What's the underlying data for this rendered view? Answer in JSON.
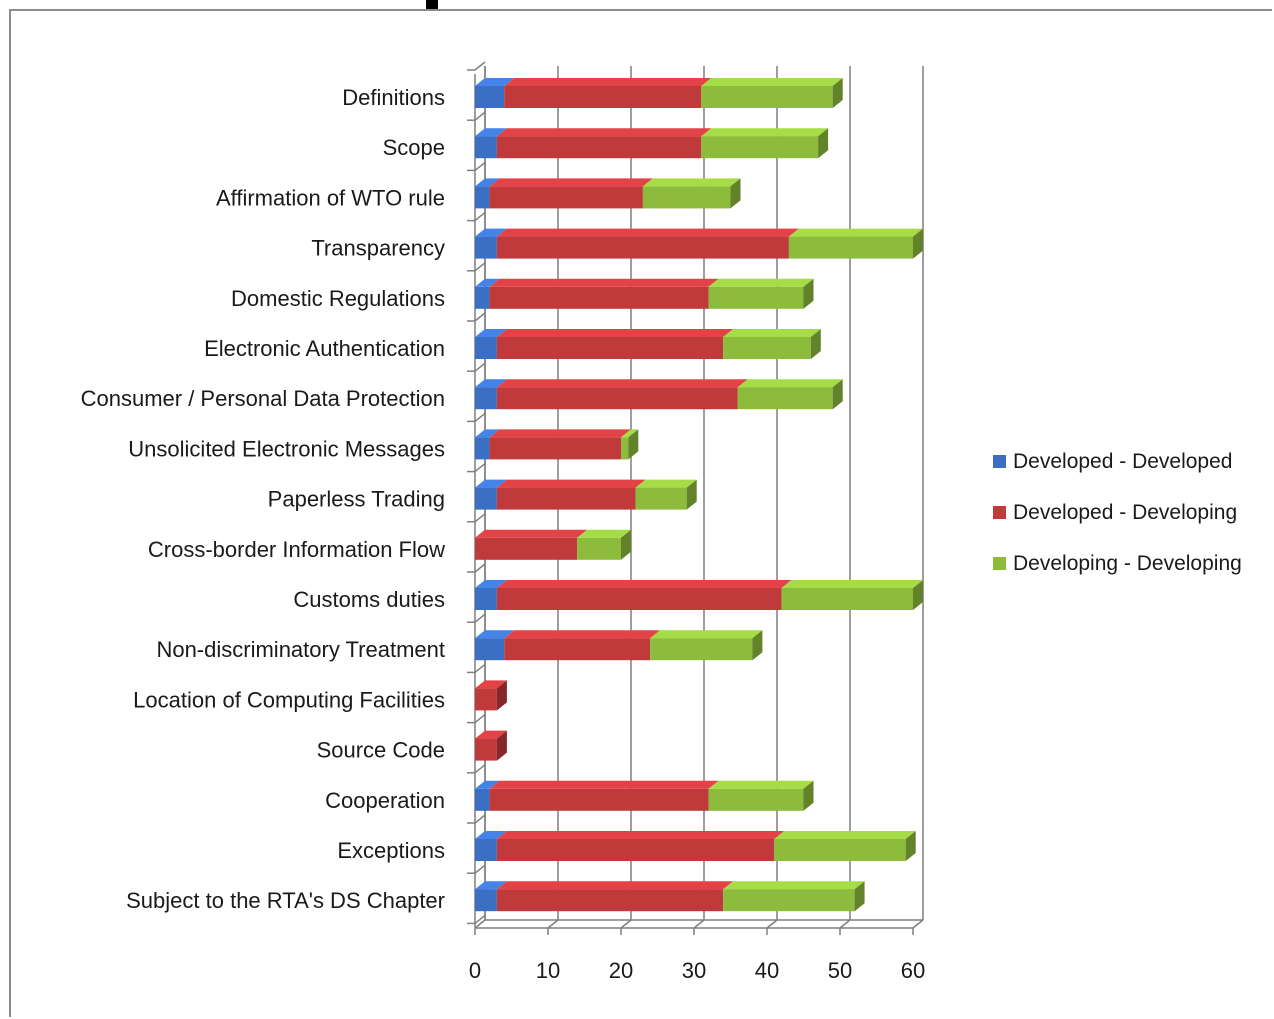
{
  "chart_data": {
    "type": "bar",
    "orientation": "horizontal",
    "stacked": true,
    "three_d": true,
    "categories": [
      "Definitions",
      "Scope",
      "Affirmation of WTO rule",
      "Transparency",
      "Domestic Regulations",
      "Electronic Authentication",
      "Consumer / Personal Data Protection",
      "Unsolicited Electronic Messages",
      "Paperless Trading",
      "Cross-border Information Flow",
      "Customs duties",
      "Non-discriminatory Treatment",
      "Location of Computing Facilities",
      "Source Code",
      "Cooperation",
      "Exceptions",
      "Subject to the RTA's DS Chapter"
    ],
    "series": [
      {
        "name": "Developed - Developed",
        "color": "#3a6fc4",
        "values": [
          4,
          3,
          2,
          3,
          2,
          3,
          3,
          2,
          3,
          0,
          3,
          4,
          0,
          0,
          2,
          3,
          3
        ]
      },
      {
        "name": "Developed - Developing",
        "color": "#c0393b",
        "values": [
          27,
          28,
          21,
          40,
          30,
          31,
          33,
          18,
          19,
          14,
          39,
          20,
          3,
          3,
          30,
          38,
          31
        ]
      },
      {
        "name": "Developing - Developing",
        "color": "#8dbb3c",
        "values": [
          18,
          16,
          12,
          17,
          13,
          12,
          13,
          1,
          7,
          6,
          18,
          14,
          0,
          0,
          13,
          18,
          18
        ]
      }
    ],
    "xlim": [
      0,
      60
    ],
    "xticks": [
      0,
      10,
      20,
      30,
      40,
      50,
      60
    ],
    "xlabel": "",
    "ylabel": "",
    "title": "",
    "grid": "vertical",
    "legend_position": "right"
  }
}
